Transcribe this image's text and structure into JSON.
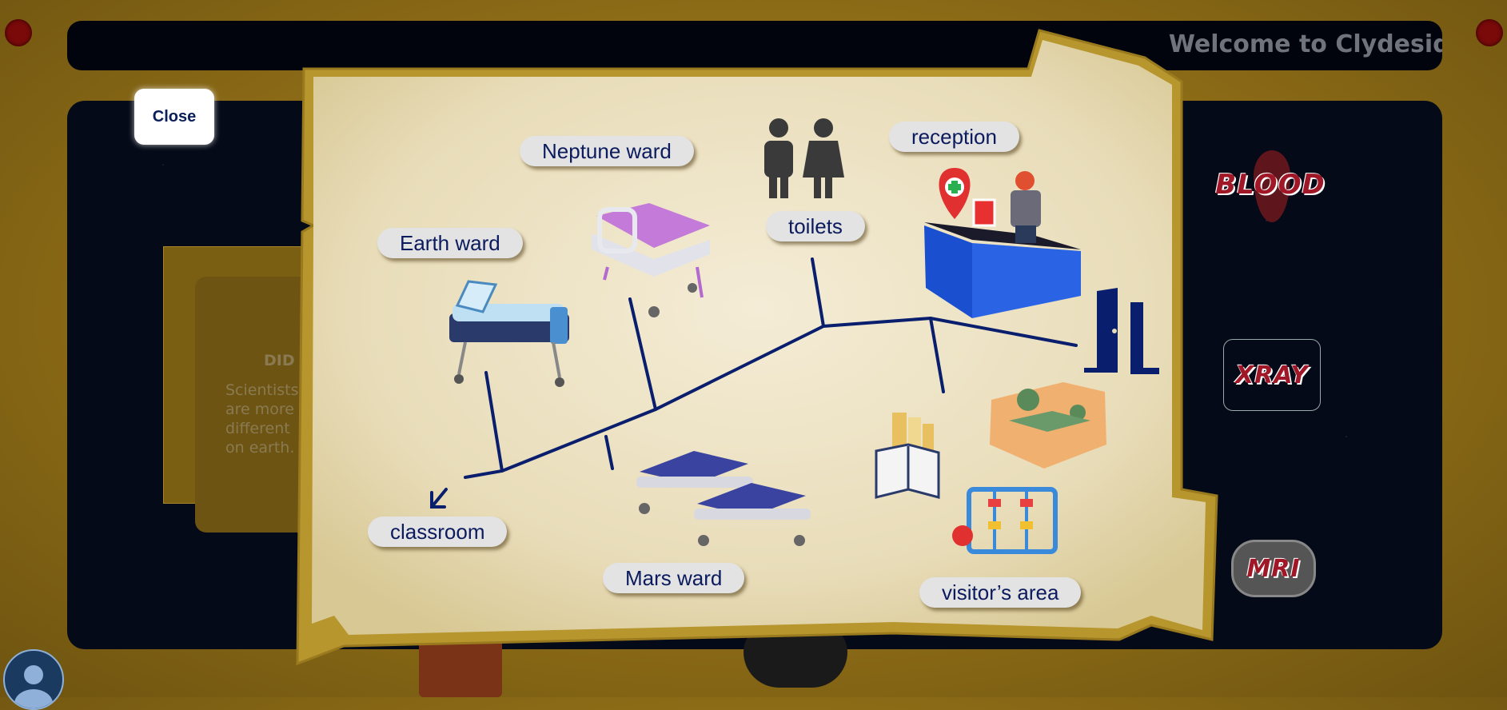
{
  "header": {
    "welcome_text": "Welcome to Clydeside"
  },
  "close_button": {
    "label": "Close"
  },
  "did_you_know": {
    "title": "DID",
    "text": "Scientists are more different on earth."
  },
  "side_tests": {
    "blood": "BLOOD",
    "xray": "XRAY",
    "mri": "MRI"
  },
  "map": {
    "labels": {
      "earth_ward": "Earth ward",
      "neptune_ward": "Neptune ward",
      "toilets": "toilets",
      "reception": "reception",
      "classroom": "classroom",
      "mars_ward": "Mars ward",
      "visitors_area": "visitor’s area"
    }
  },
  "colors": {
    "path": "#0a1e6e",
    "parchment": "#efe6cc",
    "frame": "#b8962e"
  }
}
